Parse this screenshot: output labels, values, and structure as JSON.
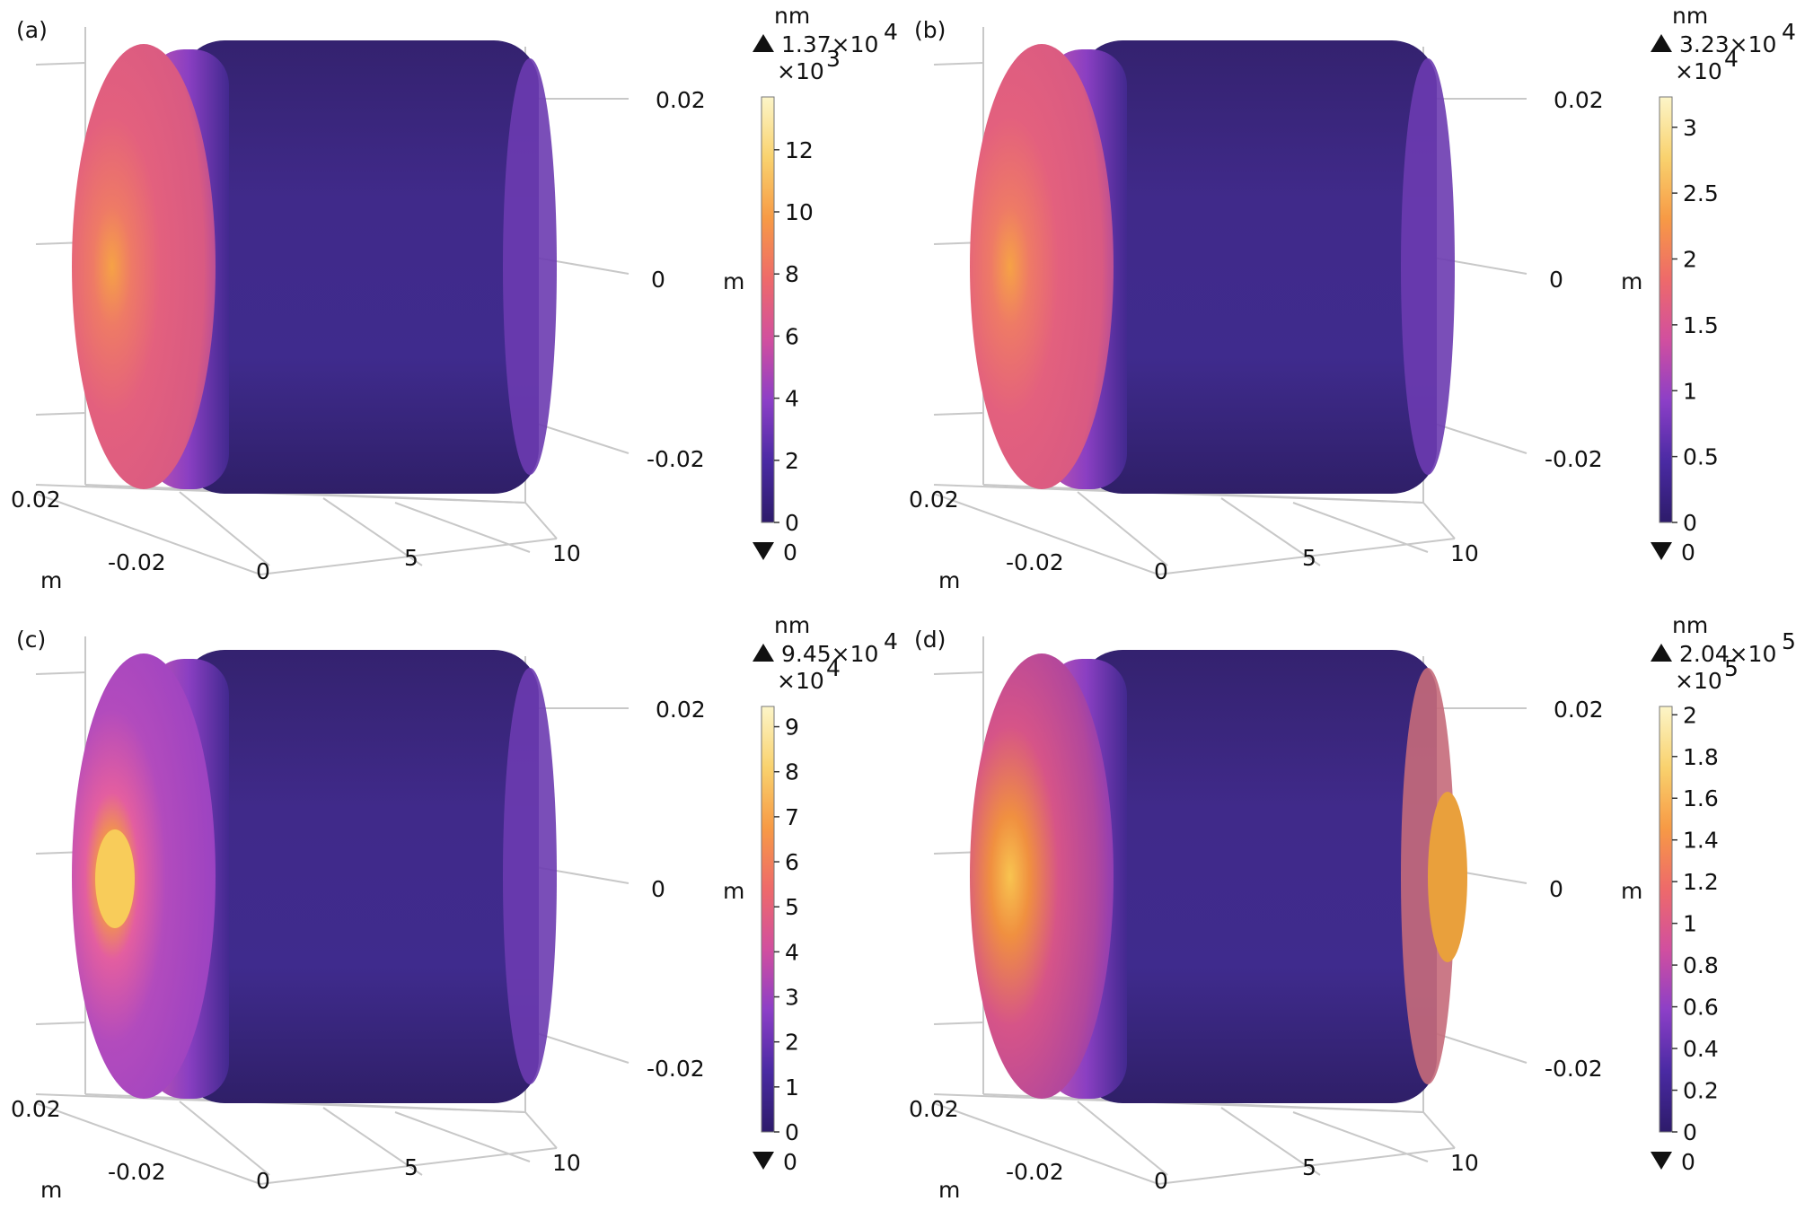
{
  "figure": {
    "panels": [
      {
        "label": "(a)",
        "unit": "nm",
        "max_label": "1.37×10",
        "max_exp": "4",
        "multiplier": "×10",
        "multiplier_exp": "3",
        "min_label": "0",
        "axis_unit": "m",
        "y_ticks": [
          "0.02",
          "0",
          "-0.02"
        ],
        "x_ticks": [
          "-0.02",
          "0",
          "5",
          "10"
        ],
        "depth_tick": "0.02",
        "depth_unit": "m",
        "colorbar_ticks": [
          "0",
          "2",
          "4",
          "6",
          "8",
          "10",
          "12"
        ],
        "colorbar_values": [
          0,
          2,
          4,
          6,
          8,
          10,
          12
        ],
        "colorbar_max": 13.7,
        "hotspot": "left-center"
      },
      {
        "label": "(b)",
        "unit": "nm",
        "max_label": "3.23×10",
        "max_exp": "4",
        "multiplier": "×10",
        "multiplier_exp": "4",
        "min_label": "0",
        "axis_unit": "m",
        "y_ticks": [
          "0.02",
          "0",
          "-0.02"
        ],
        "x_ticks": [
          "-0.02",
          "0",
          "5",
          "10"
        ],
        "depth_tick": "0.02",
        "depth_unit": "m",
        "colorbar_ticks": [
          "0",
          "0.5",
          "1",
          "1.5",
          "2",
          "2.5",
          "3"
        ],
        "colorbar_values": [
          0,
          0.5,
          1,
          1.5,
          2,
          2.5,
          3
        ],
        "colorbar_max": 3.23,
        "hotspot": "left-center"
      },
      {
        "label": "(c)",
        "unit": "nm",
        "max_label": "9.45×10",
        "max_exp": "4",
        "multiplier": "×10",
        "multiplier_exp": "4",
        "min_label": "0",
        "axis_unit": "m",
        "y_ticks": [
          "0.02",
          "0",
          "-0.02"
        ],
        "x_ticks": [
          "-0.02",
          "0",
          "5",
          "10"
        ],
        "depth_tick": "0.02",
        "depth_unit": "m",
        "colorbar_ticks": [
          "0",
          "1",
          "2",
          "3",
          "4",
          "5",
          "6",
          "7",
          "8",
          "9"
        ],
        "colorbar_values": [
          0,
          1,
          2,
          3,
          4,
          5,
          6,
          7,
          8,
          9
        ],
        "colorbar_max": 9.45,
        "hotspot": "left-peak"
      },
      {
        "label": "(d)",
        "unit": "nm",
        "max_label": "2.04×10",
        "max_exp": "5",
        "multiplier": "×10",
        "multiplier_exp": "5",
        "min_label": "0",
        "axis_unit": "m",
        "y_ticks": [
          "0.02",
          "0",
          "-0.02"
        ],
        "x_ticks": [
          "-0.02",
          "0",
          "5",
          "10"
        ],
        "depth_tick": "0.02",
        "depth_unit": "m",
        "colorbar_ticks": [
          "0",
          "0.2",
          "0.4",
          "0.6",
          "0.8",
          "1",
          "1.2",
          "1.4",
          "1.6",
          "1.8",
          "2"
        ],
        "colorbar_values": [
          0,
          0.2,
          0.4,
          0.6,
          0.8,
          1,
          1.2,
          1.4,
          1.6,
          1.8,
          2
        ],
        "colorbar_max": 2.04,
        "hotspot": "both-ends"
      }
    ],
    "colors": {
      "body": "#3e2a86",
      "body_dark": "#33216f",
      "face": "#e05a86",
      "hot": "#f5a33a",
      "colormap": [
        "#2d1b6a",
        "#4a2aa3",
        "#8c3fc7",
        "#d14f9f",
        "#ee6a6a",
        "#f79a45",
        "#f9d26e",
        "#fcf5c8"
      ]
    }
  }
}
